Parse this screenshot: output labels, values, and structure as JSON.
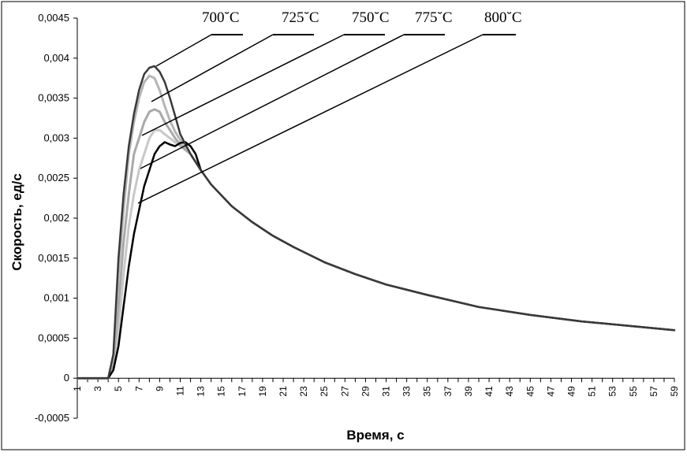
{
  "chart_data": {
    "type": "line",
    "xlabel": "Время, с",
    "ylabel": "Скорость, ед/с",
    "xlim": [
      1,
      59
    ],
    "ylim": [
      -0.0005,
      0.0045
    ],
    "x_ticks": [
      "1",
      "3",
      "5",
      "7",
      "9",
      "11",
      "13",
      "15",
      "17",
      "19",
      "21",
      "23",
      "25",
      "27",
      "29",
      "31",
      "33",
      "35",
      "37",
      "39",
      "41",
      "43",
      "45",
      "47",
      "49",
      "51",
      "53",
      "55",
      "57",
      "59"
    ],
    "y_ticks": [
      "-0,0005",
      "0",
      "0,0005",
      "0,001",
      "0,0015",
      "0,002",
      "0,0025",
      "0,003",
      "0,0035",
      "0,004",
      "0,0045"
    ],
    "y_tick_values": [
      -0.0005,
      0,
      0.0005,
      0.001,
      0.0015,
      0.002,
      0.0025,
      0.003,
      0.0035,
      0.004,
      0.0045
    ],
    "grid": false,
    "legend_position": "top, labels with leader lines",
    "series": [
      {
        "name": "700˘C",
        "color": "#3a3a3a",
        "x": [
          1,
          2,
          3,
          4,
          4.5,
          5,
          5.5,
          6,
          6.5,
          7,
          7.5,
          8,
          8.5,
          9,
          9.5,
          10,
          10.5,
          11,
          12,
          13,
          14,
          16,
          18,
          20,
          22,
          25,
          28,
          31,
          35,
          40,
          45,
          50,
          55,
          59
        ],
        "y": [
          0,
          0,
          0,
          0,
          0.0003,
          0.0015,
          0.0023,
          0.0029,
          0.0033,
          0.0036,
          0.0038,
          0.00388,
          0.0039,
          0.00383,
          0.0037,
          0.0035,
          0.00328,
          0.00305,
          0.0028,
          0.0026,
          0.00242,
          0.00215,
          0.00195,
          0.00178,
          0.00164,
          0.00145,
          0.0013,
          0.00117,
          0.00104,
          0.00089,
          0.00079,
          0.00071,
          0.00065,
          0.0006
        ]
      },
      {
        "name": "725˘C",
        "color": "#b5b5b5",
        "x": [
          1,
          2,
          3,
          4,
          4.5,
          5,
          5.5,
          6,
          6.5,
          7,
          7.5,
          8,
          8.5,
          9,
          9.5,
          10,
          10.5,
          11,
          11.5,
          12,
          13
        ],
        "y": [
          0,
          0,
          0,
          0,
          0.00025,
          0.0013,
          0.0021,
          0.0028,
          0.0032,
          0.0035,
          0.0037,
          0.00378,
          0.00375,
          0.0036,
          0.0034,
          0.00322,
          0.00308,
          0.00298,
          0.0029,
          0.0028,
          0.0026
        ]
      },
      {
        "name": "750˘C",
        "color": "#a9a9a9",
        "x": [
          1,
          2,
          3,
          4,
          4.5,
          5,
          5.5,
          6,
          6.5,
          7,
          7.5,
          8,
          8.5,
          9,
          9.5,
          10,
          10.5,
          11,
          12,
          13
        ],
        "y": [
          0,
          0,
          0,
          0,
          0.0002,
          0.0009,
          0.0017,
          0.0023,
          0.0028,
          0.003,
          0.0032,
          0.00333,
          0.00336,
          0.00333,
          0.0032,
          0.0031,
          0.003,
          0.00292,
          0.0028,
          0.0026
        ]
      },
      {
        "name": "775˘C",
        "color": "#c8c8c8",
        "x": [
          1,
          2,
          3,
          4,
          4.5,
          5,
          5.5,
          6,
          6.5,
          7,
          7.5,
          8,
          8.5,
          9,
          9.5,
          10,
          11,
          12,
          13
        ],
        "y": [
          0,
          0,
          0,
          0,
          0.00015,
          0.0006,
          0.0013,
          0.0019,
          0.0023,
          0.0026,
          0.0028,
          0.003,
          0.0031,
          0.0031,
          0.00305,
          0.003,
          0.0029,
          0.0028,
          0.0026
        ]
      },
      {
        "name": "800˘C",
        "color": "#000000",
        "x": [
          1,
          2,
          3,
          4,
          4.5,
          5,
          5.5,
          6,
          6.5,
          7,
          7.5,
          8,
          8.5,
          9,
          9.5,
          10,
          10.5,
          11,
          11.5,
          12,
          12.5,
          13,
          14,
          16,
          18,
          20,
          22,
          25,
          28,
          31,
          35,
          40,
          45,
          50,
          55,
          59
        ],
        "y": [
          0,
          0,
          0,
          0,
          0.0001,
          0.0004,
          0.0009,
          0.0014,
          0.0018,
          0.0021,
          0.0024,
          0.0026,
          0.0028,
          0.0029,
          0.00295,
          0.00292,
          0.0029,
          0.00294,
          0.00295,
          0.0029,
          0.0028,
          0.0026,
          0.00242,
          0.00215,
          0.00195,
          0.00178,
          0.00164,
          0.00145,
          0.0013,
          0.00117,
          0.00104,
          0.00089,
          0.00079,
          0.00071,
          0.00065,
          0.0006
        ]
      }
    ]
  }
}
